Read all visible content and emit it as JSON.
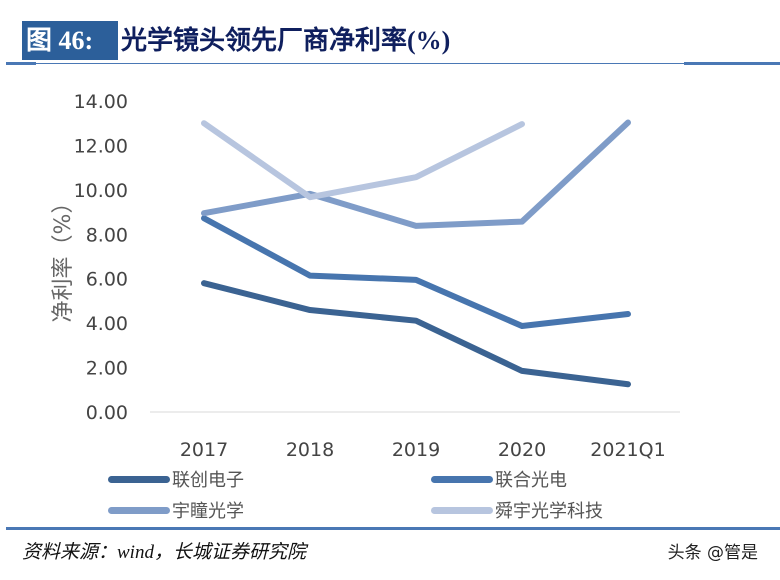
{
  "header": {
    "figure_label": "图 46:",
    "title": "光学镜头领先厂商净利率(%)"
  },
  "footer": {
    "source": "资料来源：wind，长城证券研究院",
    "watermark": "头条 @管是"
  },
  "chart_data": {
    "type": "line",
    "title": "光学镜头领先厂商净利率(%)",
    "ylabel": "净利率（%）",
    "xlabel": "",
    "categories": [
      "2017",
      "2018",
      "2019",
      "2020",
      "2021Q1"
    ],
    "ylim": [
      0,
      14
    ],
    "yticks": [
      "0.00",
      "2.00",
      "4.00",
      "6.00",
      "8.00",
      "10.00",
      "12.00",
      "14.00"
    ],
    "grid": false,
    "legend_placement": "bottom",
    "series": [
      {
        "name": "联创电子",
        "color": "#3b6392",
        "values": [
          5.8,
          4.59,
          4.11,
          1.85,
          1.25
        ]
      },
      {
        "name": "联合光电",
        "color": "#4775ae",
        "values": [
          8.72,
          6.14,
          5.95,
          3.87,
          4.41
        ]
      },
      {
        "name": "宇瞳光学",
        "color": "#7f9cc8",
        "values": [
          8.95,
          9.82,
          8.38,
          8.57,
          13.03
        ]
      },
      {
        "name": "舜宇光学科技",
        "color": "#b7c5df",
        "values": [
          13.0,
          9.67,
          10.57,
          12.96,
          null
        ]
      }
    ]
  }
}
